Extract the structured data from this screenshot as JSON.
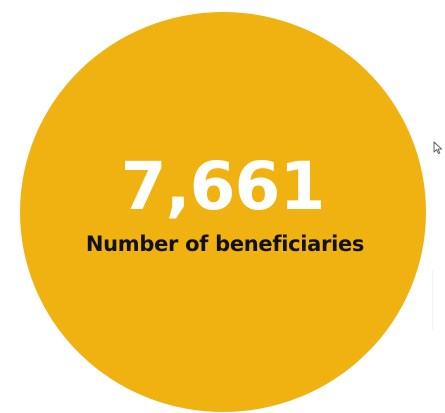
{
  "stat": {
    "value": "7,661",
    "label": "Number of beneficiaries"
  },
  "colors": {
    "circle": "#f0b210",
    "value_text": "#ffffff",
    "label_text": "#111111",
    "background": "#ffffff"
  },
  "icons": {
    "cursor": "mouse-pointer-icon"
  }
}
